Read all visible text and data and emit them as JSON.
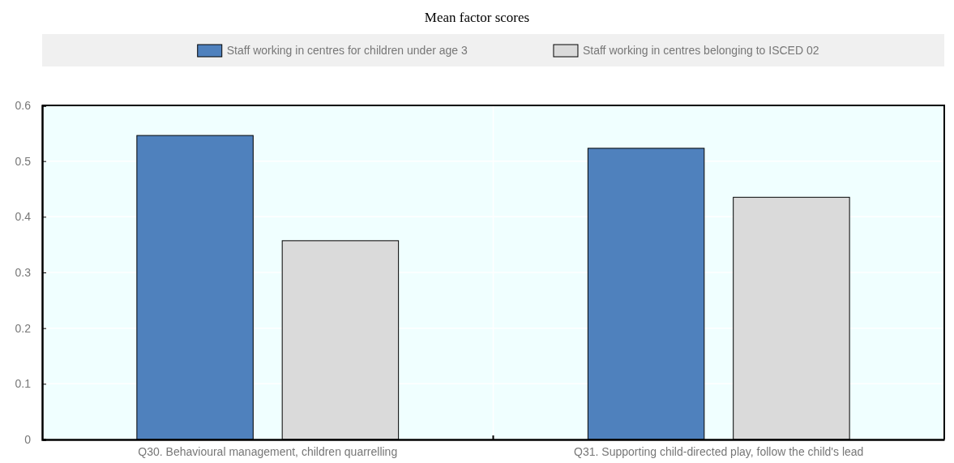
{
  "chart_data": {
    "type": "bar",
    "title": "Mean factor scores",
    "categories": [
      "Q30. Behavioural management, children quarrelling",
      "Q31. Supporting child-directed play, follow the child's lead"
    ],
    "series": [
      {
        "name": "Staff working in centres for children under age 3",
        "color": "#4f81bd",
        "values": [
          0.546,
          0.523
        ]
      },
      {
        "name": "Staff working in centres belonging to ISCED 02",
        "color": "#dadada",
        "values": [
          0.357,
          0.435
        ]
      }
    ],
    "ylim": [
      0,
      0.6
    ],
    "yticks": [
      0,
      0.1,
      0.2,
      0.3,
      0.4,
      0.5,
      0.6
    ],
    "grid": true,
    "legend": "top"
  }
}
